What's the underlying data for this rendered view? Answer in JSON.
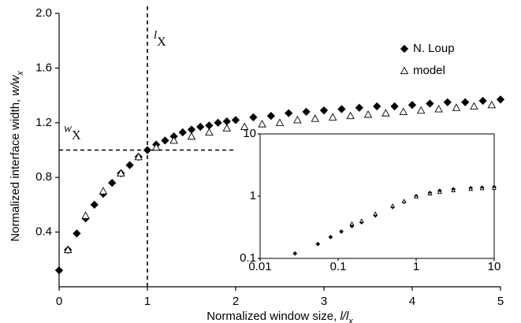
{
  "chart_data": [
    {
      "type": "scatter",
      "xlabel": [
        "Normalized window size, ",
        "l/l",
        "x"
      ],
      "ylabel": [
        "Normalized interface width, ",
        "w/w",
        "x"
      ],
      "xlim": [
        0,
        5
      ],
      "xticks": [
        0,
        1,
        2,
        3,
        4,
        5
      ],
      "ylim": [
        0,
        2
      ],
      "yticks": [
        0.4,
        0.8,
        1.2,
        1.6,
        {
          "value": 2,
          "label": "2.0"
        }
      ],
      "legend": "upper right",
      "reference_lines": [
        {
          "x": 1,
          "label": [
            "l",
            "X"
          ]
        },
        {
          "y": 1,
          "xrange": [
            0,
            2
          ],
          "label": [
            "w",
            "X"
          ]
        }
      ],
      "series": [
        {
          "name": "N. Loup",
          "marker": "diamond",
          "color": "#000000",
          "x": [
            0,
            0.1,
            0.2,
            0.3,
            0.4,
            0.5,
            0.6,
            0.7,
            0.8,
            0.9,
            1.0,
            1.1,
            1.2,
            1.3,
            1.4,
            1.5,
            1.6,
            1.7,
            1.8,
            1.9,
            2.0,
            2.2,
            2.4,
            2.6,
            2.8,
            3.0,
            3.2,
            3.4,
            3.6,
            3.8,
            4.0,
            4.2,
            4.4,
            4.6,
            4.8,
            5.0
          ],
          "values": [
            0.12,
            0.27,
            0.39,
            0.5,
            0.6,
            0.68,
            0.76,
            0.83,
            0.89,
            0.95,
            1.0,
            1.04,
            1.07,
            1.1,
            1.13,
            1.15,
            1.17,
            1.18,
            1.2,
            1.21,
            1.22,
            1.24,
            1.25,
            1.27,
            1.28,
            1.29,
            1.3,
            1.31,
            1.32,
            1.32,
            1.33,
            1.34,
            1.35,
            1.35,
            1.36,
            1.37
          ]
        },
        {
          "name": "model",
          "marker": "triangle",
          "color": "#000000",
          "x": [
            0.1,
            0.3,
            0.5,
            0.7,
            0.9,
            1.1,
            1.3,
            1.5,
            1.7,
            1.9,
            2.1,
            2.3,
            2.5,
            2.7,
            2.9,
            3.1,
            3.3,
            3.5,
            3.7,
            3.9,
            4.1,
            4.3,
            4.5,
            4.7,
            4.9
          ],
          "values": [
            0.27,
            0.52,
            0.7,
            0.83,
            0.95,
            1.02,
            1.07,
            1.1,
            1.13,
            1.16,
            1.17,
            1.19,
            1.2,
            1.22,
            1.23,
            1.24,
            1.25,
            1.26,
            1.27,
            1.28,
            1.29,
            1.3,
            1.31,
            1.32,
            1.33
          ]
        }
      ]
    },
    {
      "type": "scatter",
      "xscale": "log",
      "yscale": "log",
      "xlim": [
        0.01,
        10
      ],
      "xticks": [
        0.01,
        0.1,
        1,
        10
      ],
      "ylim": [
        0.1,
        10
      ],
      "yticks": [
        0.1,
        1,
        10
      ],
      "series": [
        {
          "marker": "diamond",
          "color": "#000000",
          "x": [
            0.028,
            0.055,
            0.08,
            0.11,
            0.15,
            0.2,
            0.3,
            0.5,
            0.7,
            1,
            1.5,
            2,
            3,
            5,
            7,
            10
          ],
          "values": [
            0.12,
            0.17,
            0.22,
            0.27,
            0.33,
            0.38,
            0.49,
            0.67,
            0.81,
            1.0,
            1.13,
            1.22,
            1.29,
            1.35,
            1.37,
            1.4
          ]
        },
        {
          "marker": "triangle",
          "color": "#000000",
          "x": [
            0.15,
            0.2,
            0.3,
            0.5,
            0.7,
            1,
            1.5,
            2,
            3,
            5,
            7,
            10
          ],
          "values": [
            0.36,
            0.4,
            0.52,
            0.7,
            0.83,
            0.98,
            1.1,
            1.16,
            1.24,
            1.3,
            1.33,
            1.35
          ]
        }
      ]
    }
  ]
}
